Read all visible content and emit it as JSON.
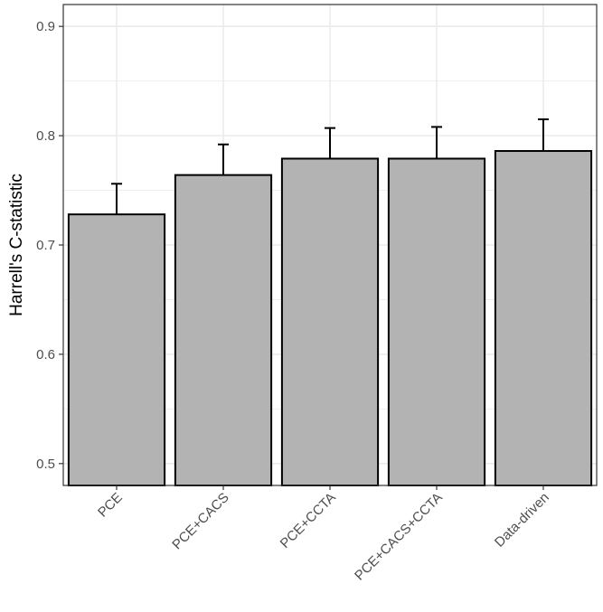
{
  "chart_data": {
    "type": "bar",
    "title": "",
    "xlabel": "",
    "ylabel": "Harrell's C-statistic",
    "categories": [
      "PCE",
      "PCE+CACS",
      "PCE+CCTA",
      "PCE+CACS+CCTA",
      "Data-driven"
    ],
    "values": [
      0.728,
      0.764,
      0.779,
      0.779,
      0.786
    ],
    "error_upper": [
      0.756,
      0.792,
      0.807,
      0.808,
      0.815
    ],
    "ylim": [
      0.48,
      0.92
    ],
    "yticks": [
      0.5,
      0.6,
      0.7,
      0.8,
      0.9
    ],
    "ytick_labels": [
      "0.5",
      "0.6",
      "0.7",
      "0.8",
      "0.9"
    ],
    "grid": true,
    "bar_color": "#b3b3b3",
    "bar_edge_color": "#000000",
    "grid_color": "#ebebeb"
  }
}
